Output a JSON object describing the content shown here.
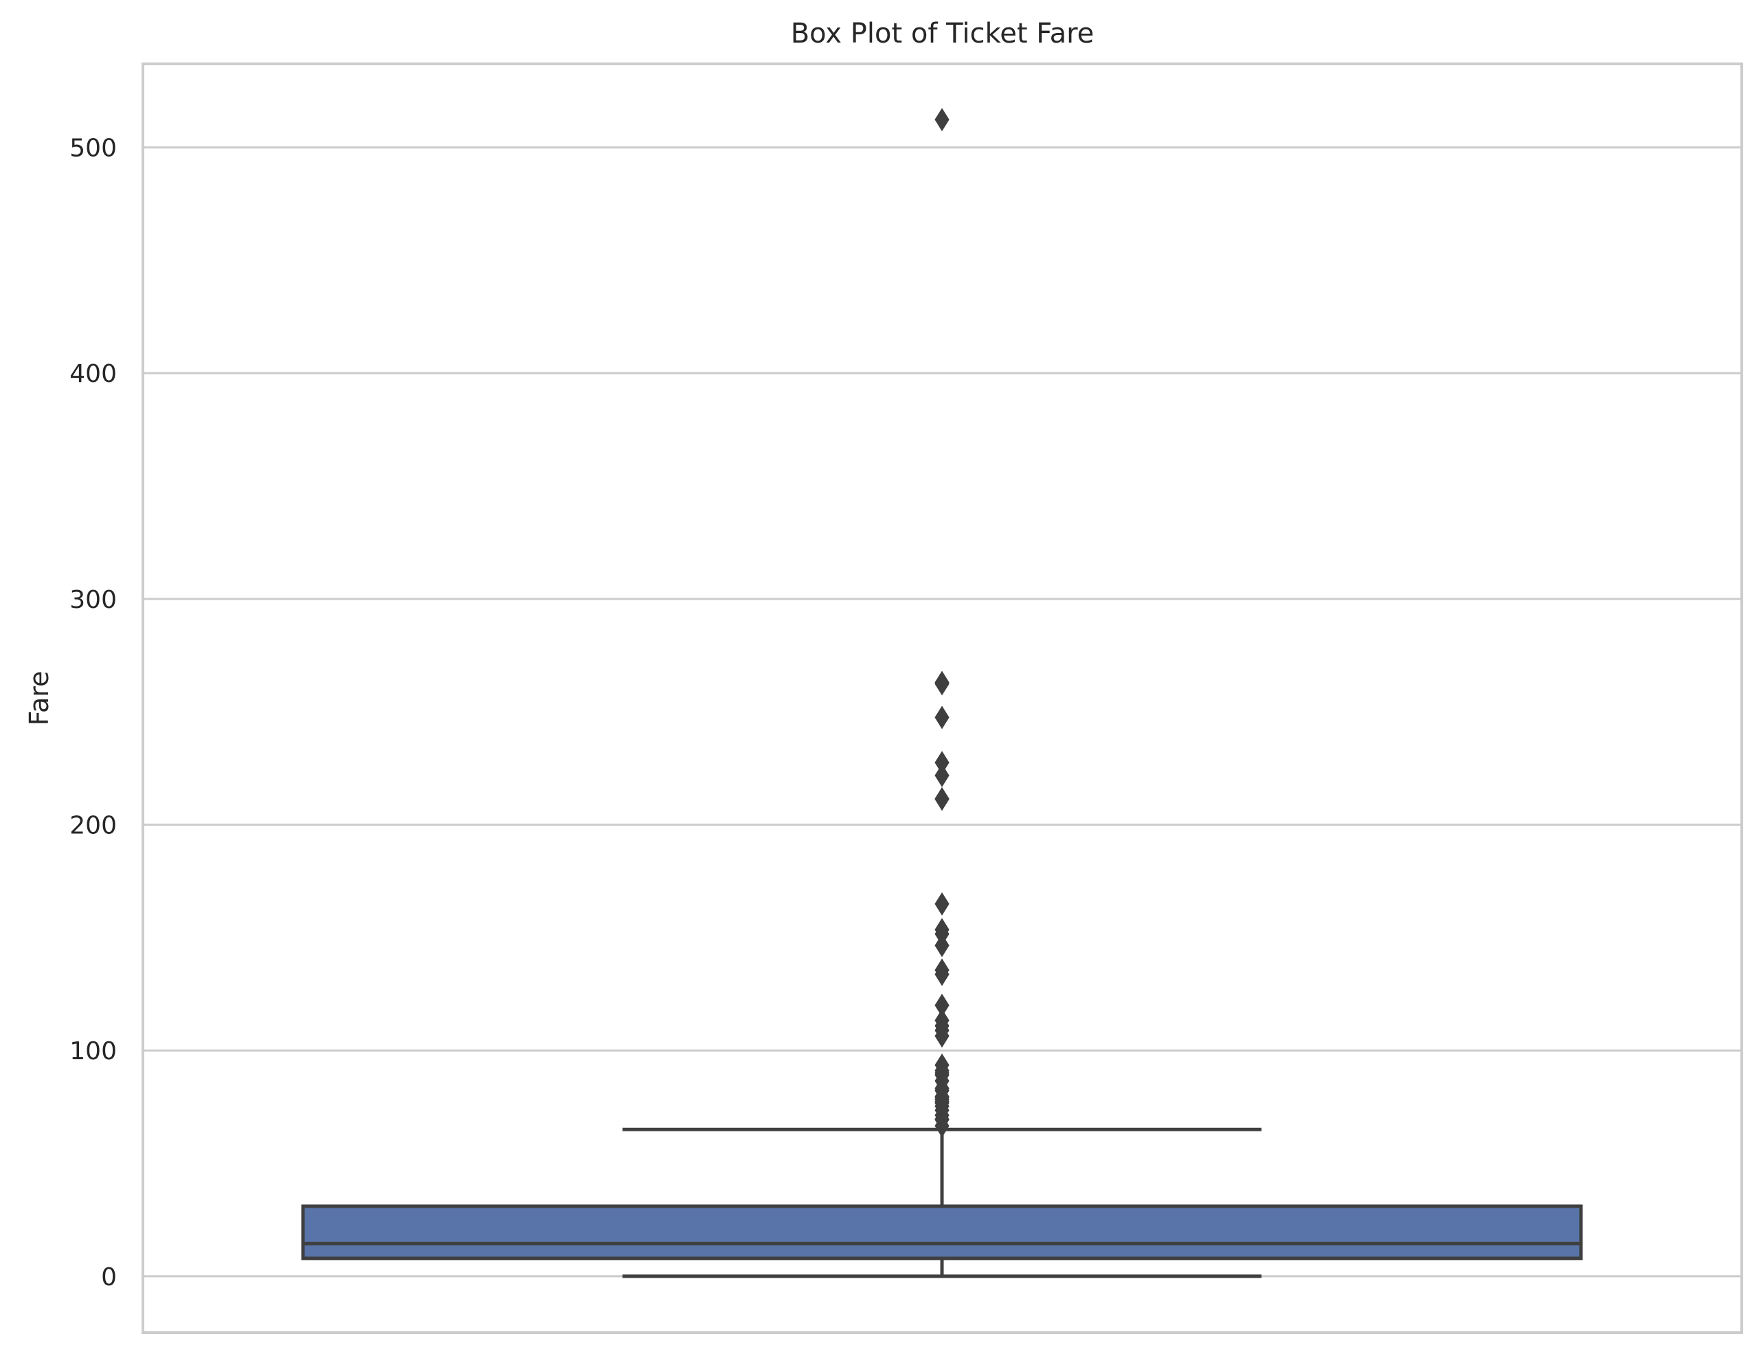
{
  "chart_data": {
    "type": "box",
    "title": "Box Plot of Ticket Fare",
    "xlabel": "",
    "ylabel": "Fare",
    "ylim": [
      -25,
      537
    ],
    "yticks": [
      0,
      100,
      200,
      300,
      400,
      500
    ],
    "grid": "horizontal",
    "legend": "none",
    "box": {
      "min": 0,
      "q1": 7.9,
      "median": 14.45,
      "q3": 31,
      "whisker_low": 0,
      "whisker_high": 65
    },
    "outliers": [
      512.3,
      263,
      262.4,
      247.5,
      227.5,
      221.8,
      211.5,
      211.3,
      164.9,
      153.5,
      151.6,
      146.5,
      135.6,
      133.7,
      120,
      113.3,
      110.9,
      108.9,
      106.4,
      93.5,
      91.1,
      90,
      89.1,
      86.5,
      83.2,
      82.2,
      79.6,
      79.2,
      78.3,
      77.3,
      76.7,
      75.3,
      73.5,
      71.3,
      69.6,
      69.3,
      66.6
    ]
  },
  "colors": {
    "box_fill": "#5874a8",
    "line": "#3f3f3f",
    "grid": "#cccccc",
    "axes_border": "#cccccc",
    "text": "#262626"
  }
}
